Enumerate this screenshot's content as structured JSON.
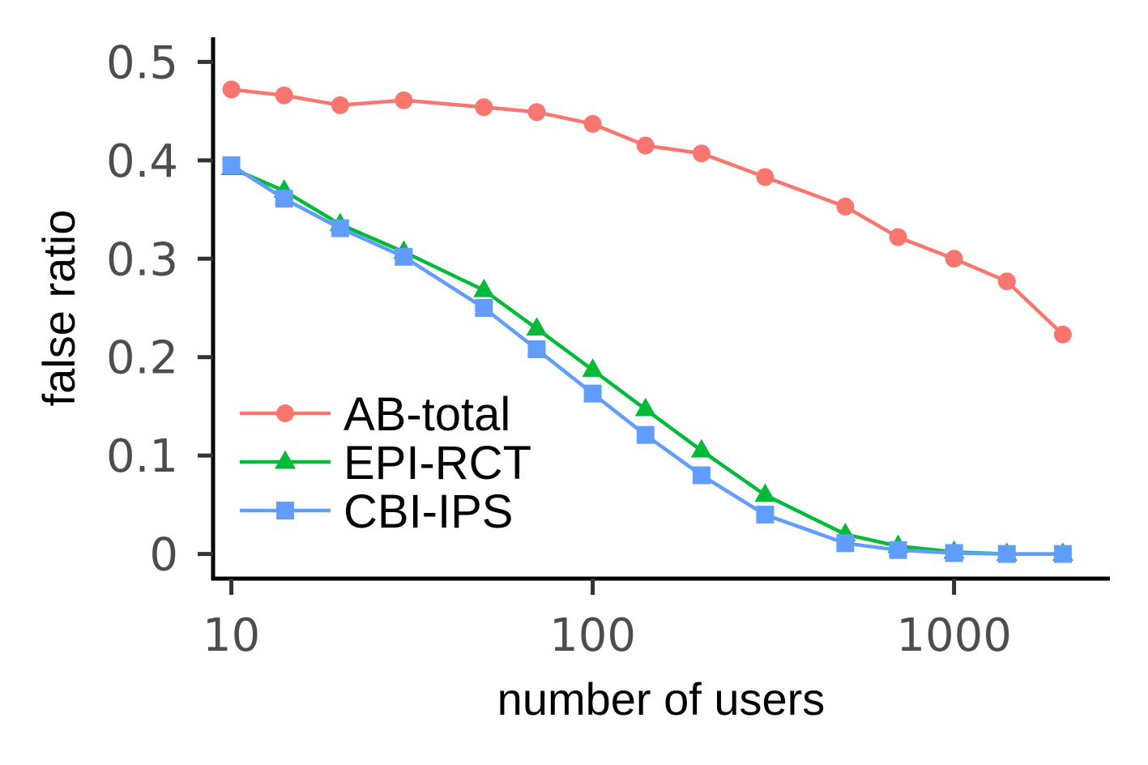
{
  "chart_data": {
    "type": "line",
    "title": "",
    "xlabel": "number of users",
    "ylabel": "false ratio",
    "xscale": "log",
    "xlim": [
      8.9,
      2700
    ],
    "ylim": [
      -0.025,
      0.525
    ],
    "x_ticks": [
      10,
      100,
      1000
    ],
    "x_tick_labels": [
      "10",
      "100",
      "1000"
    ],
    "y_ticks": [
      0,
      0.1,
      0.2,
      0.3,
      0.4,
      0.5
    ],
    "y_tick_labels": [
      "0",
      "0.1",
      "0.2",
      "0.3",
      "0.4",
      "0.5"
    ],
    "grid": false,
    "legend_position": "bottom-left",
    "x": [
      10,
      14,
      20,
      30,
      50,
      70,
      100,
      140,
      200,
      300,
      500,
      700,
      1000,
      1400,
      2000
    ],
    "series": [
      {
        "name": "AB-total",
        "color": "#F8766D",
        "marker": "circle",
        "values": [
          0.472,
          0.466,
          0.456,
          0.461,
          0.454,
          0.449,
          0.437,
          0.415,
          0.407,
          0.383,
          0.353,
          0.322,
          0.3,
          0.277,
          0.223
        ]
      },
      {
        "name": "EPI-RCT",
        "color": "#00BA38",
        "marker": "triangle",
        "values": [
          0.392,
          0.369,
          0.335,
          0.307,
          0.268,
          0.229,
          0.187,
          0.147,
          0.105,
          0.06,
          0.02,
          0.008,
          0.002,
          0.0,
          0.0
        ]
      },
      {
        "name": "CBI-IPS",
        "color": "#619CFF",
        "marker": "square",
        "values": [
          0.395,
          0.361,
          0.331,
          0.302,
          0.25,
          0.208,
          0.163,
          0.121,
          0.08,
          0.04,
          0.011,
          0.004,
          0.001,
          0.0,
          0.0
        ]
      }
    ]
  }
}
